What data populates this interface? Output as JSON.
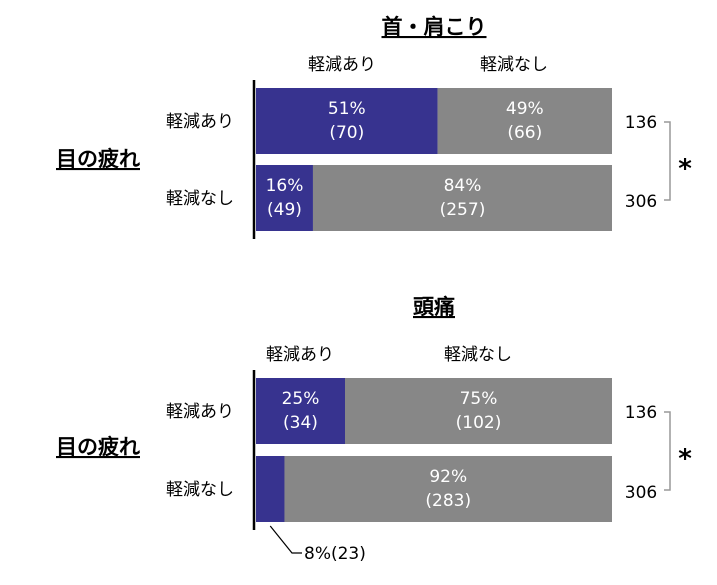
{
  "colors": {
    "relief": "#37338f",
    "no_relief": "#878787",
    "axis": "#000000",
    "bracket": "#999999"
  },
  "chart_data": [
    {
      "type": "bar",
      "orientation": "horizontal-stacked-100",
      "title": "首・肩こり",
      "legend": [
        "軽減あり",
        "軽減なし"
      ],
      "group_label": "目の疲れ",
      "significance": "*",
      "rows": [
        {
          "label": "軽減あり",
          "n": "136",
          "segments": [
            {
              "pct": 51,
              "text": "51%",
              "count_text": "(70)"
            },
            {
              "pct": 49,
              "text": "49%",
              "count_text": "(66)"
            }
          ]
        },
        {
          "label": "軽減なし",
          "n": "306",
          "segments": [
            {
              "pct": 16,
              "text": "16%",
              "count_text": "(49)"
            },
            {
              "pct": 84,
              "text": "84%",
              "count_text": "(257)"
            }
          ]
        }
      ]
    },
    {
      "type": "bar",
      "orientation": "horizontal-stacked-100",
      "title": "頭痛",
      "legend": [
        "軽減あり",
        "軽減なし"
      ],
      "group_label": "目の疲れ",
      "significance": "*",
      "rows": [
        {
          "label": "軽減あり",
          "n": "136",
          "segments": [
            {
              "pct": 25,
              "text": "25%",
              "count_text": "(34)"
            },
            {
              "pct": 75,
              "text": "75%",
              "count_text": "(102)"
            }
          ]
        },
        {
          "label": "軽減なし",
          "n": "306",
          "segments": [
            {
              "pct": 8,
              "text": "",
              "count_text": ""
            },
            {
              "pct": 92,
              "text": "92%",
              "count_text": "(283)"
            }
          ]
        }
      ],
      "callout": "8%(23)"
    }
  ]
}
